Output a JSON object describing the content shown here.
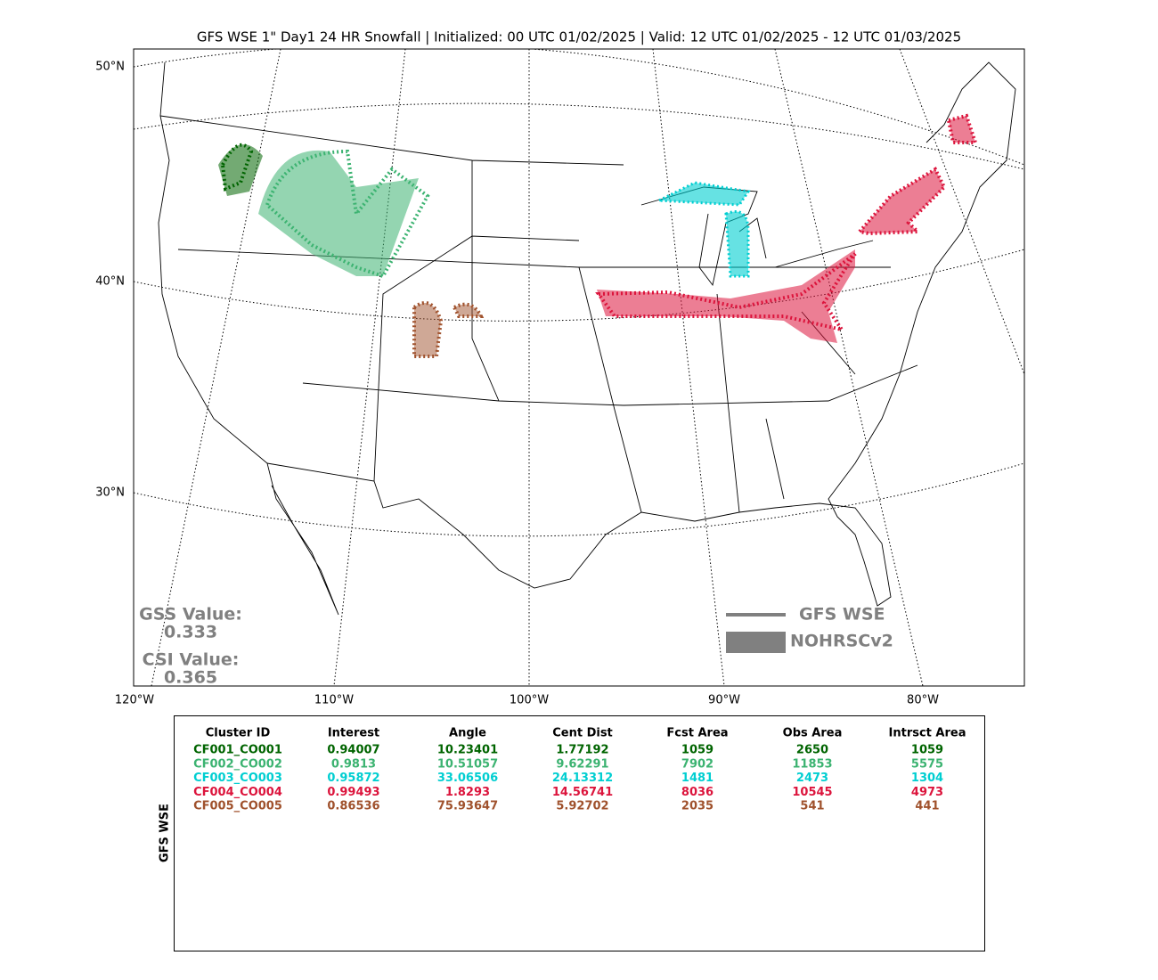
{
  "title": "GFS WSE 1\" Day1 24 HR Snowfall | Initialized: 00 UTC 01/02/2025 | Valid: 12 UTC 01/02/2025 - 12 UTC 01/03/2025",
  "map": {
    "lat_labels": [
      "50°N",
      "40°N",
      "30°N"
    ],
    "lon_labels": [
      "120°W",
      "110°W",
      "100°W",
      "90°W",
      "80°W"
    ],
    "scores": [
      {
        "label": "GSS Value:",
        "value": "0.333"
      },
      {
        "label": "CSI Value:",
        "value": "0.365"
      }
    ],
    "legend": [
      "GFS WSE",
      "NOHRSCv2"
    ]
  },
  "table": {
    "side_label": "GFS WSE",
    "columns": [
      "Cluster ID",
      "Interest",
      "Angle",
      "Cent Dist",
      "Fcst Area",
      "Obs Area",
      "Intrsct Area"
    ],
    "rows": [
      {
        "color": "#006400",
        "cells": [
          "CF001_CO001",
          "0.94007",
          "10.23401",
          "1.77192",
          "1059",
          "2650",
          "1059"
        ]
      },
      {
        "color": "#3cb371",
        "cells": [
          "CF002_CO002",
          "0.9813",
          "10.51057",
          "9.62291",
          "7902",
          "11853",
          "5575"
        ]
      },
      {
        "color": "#00ced1",
        "cells": [
          "CF003_CO003",
          "0.95872",
          "33.06506",
          "24.13312",
          "1481",
          "2473",
          "1304"
        ]
      },
      {
        "color": "#dc143c",
        "cells": [
          "CF004_CO004",
          "0.99493",
          "1.8293",
          "14.56741",
          "8036",
          "10545",
          "4973"
        ]
      },
      {
        "color": "#a0522d",
        "cells": [
          "CF005_CO005",
          "0.86536",
          "75.93647",
          "5.92702",
          "2035",
          "541",
          "441"
        ]
      }
    ]
  }
}
